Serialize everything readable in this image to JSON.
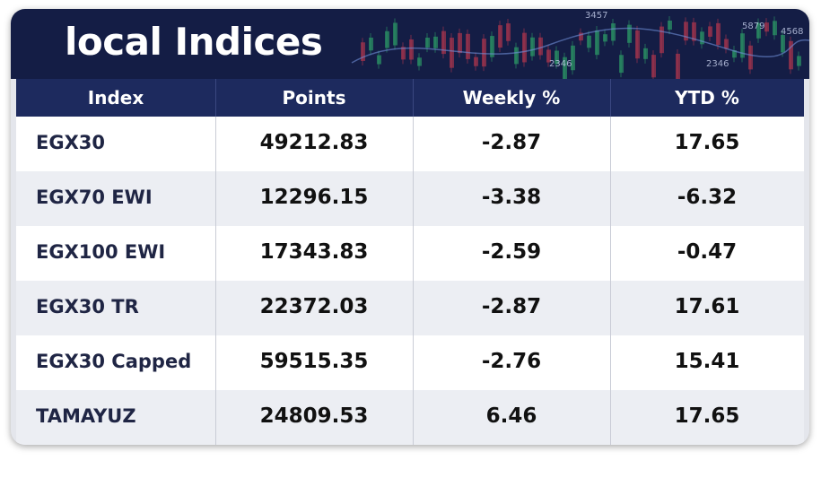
{
  "header": {
    "title": "local Indices",
    "decor_labels": [
      "3457",
      "2346",
      "5879",
      "4568",
      "2346"
    ]
  },
  "table": {
    "columns": [
      "Index",
      "Points",
      "Weekly %",
      "YTD %"
    ],
    "rows": [
      [
        "EGX30",
        "49212.83",
        "-2.87",
        "17.65"
      ],
      [
        "EGX70 EWI",
        "12296.15",
        "-3.38",
        "-6.32"
      ],
      [
        "EGX100 EWI",
        "17343.83",
        "-2.59",
        "-0.47"
      ],
      [
        "EGX30 TR",
        "22372.03",
        "-2.87",
        "17.61"
      ],
      [
        "EGX30 Capped",
        "59515.35",
        "-2.76",
        "15.41"
      ],
      [
        "TAMAYUZ",
        "24809.53",
        "6.46",
        "17.65"
      ]
    ]
  }
}
